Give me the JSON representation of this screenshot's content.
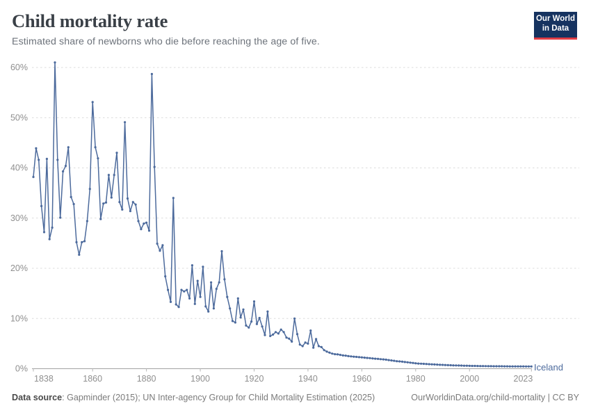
{
  "header": {
    "title": "Child mortality rate",
    "subtitle": "Estimated share of newborns who die before reaching the age of five."
  },
  "logo": {
    "line1": "Our World",
    "line2": "in Data"
  },
  "footer": {
    "source_label": "Data source",
    "source_text": ": Gapminder (2015); UN Inter-agency Group for Child Mortality Estimation (2025)",
    "right_text": "OurWorldinData.org/child-mortality | CC BY"
  },
  "chart_data": {
    "type": "line",
    "title": "Child mortality rate",
    "series_label": "Iceland",
    "line_color": "#4C6A9C",
    "grid": true,
    "x_start_year": 1838,
    "xlim": [
      1838,
      2023
    ],
    "ylim": [
      0,
      60
    ],
    "x_ticks": [
      1838,
      1860,
      1880,
      1900,
      1920,
      1940,
      1960,
      1980,
      2000,
      2023
    ],
    "y_tick_values": [
      0,
      10,
      20,
      30,
      40,
      50,
      60
    ],
    "y_tick_suffix": "%",
    "values": [
      38.2,
      43.9,
      41.6,
      32.4,
      27.2,
      41.8,
      25.8,
      28.1,
      61.0,
      41.6,
      30.1,
      39.3,
      40.4,
      44.1,
      34.2,
      32.8,
      25.2,
      22.7,
      25.2,
      25.4,
      29.4,
      35.8,
      53.1,
      44.1,
      41.9,
      29.8,
      32.9,
      33.1,
      38.6,
      34.1,
      38.6,
      43.0,
      33.2,
      31.7,
      49.1,
      33.9,
      31.4,
      33.2,
      32.7,
      29.4,
      27.8,
      28.9,
      29.1,
      27.5,
      58.7,
      40.2,
      24.9,
      23.5,
      24.6,
      18.4,
      15.7,
      13.3,
      34.0,
      12.8,
      12.3,
      15.7,
      15.4,
      15.7,
      14.0,
      20.6,
      12.9,
      17.5,
      14.3,
      20.3,
      12.4,
      11.4,
      17.2,
      12.0,
      15.9,
      17.2,
      23.4,
      17.8,
      14.3,
      12.0,
      9.5,
      9.2,
      14.0,
      10.2,
      11.8,
      8.6,
      8.2,
      9.4,
      13.4,
      8.9,
      10.1,
      8.4,
      6.7,
      11.4,
      6.5,
      6.8,
      7.3,
      7.0,
      7.8,
      7.3,
      6.2,
      6.0,
      5.4,
      10.0,
      6.9,
      4.8,
      4.5,
      5.2,
      5.0,
      7.6,
      4.2,
      5.9,
      4.5,
      4.3,
      3.7,
      3.4,
      3.2,
      3.0,
      2.9,
      2.85,
      2.75,
      2.65,
      2.6,
      2.5,
      2.45,
      2.4,
      2.35,
      2.3,
      2.25,
      2.2,
      2.15,
      2.1,
      2.05,
      2.0,
      1.95,
      1.9,
      1.85,
      1.8,
      1.72,
      1.65,
      1.58,
      1.5,
      1.45,
      1.4,
      1.33,
      1.27,
      1.2,
      1.15,
      1.08,
      1.03,
      1.0,
      0.97,
      0.94,
      0.9,
      0.87,
      0.84,
      0.81,
      0.78,
      0.76,
      0.73,
      0.71,
      0.69,
      0.67,
      0.65,
      0.63,
      0.62,
      0.6,
      0.59,
      0.57,
      0.56,
      0.55,
      0.54,
      0.53,
      0.52,
      0.51,
      0.5,
      0.5,
      0.49,
      0.49,
      0.48,
      0.48,
      0.47,
      0.47,
      0.46,
      0.46,
      0.46,
      0.45,
      0.45,
      0.45,
      0.44,
      0.44,
      0.44
    ]
  }
}
